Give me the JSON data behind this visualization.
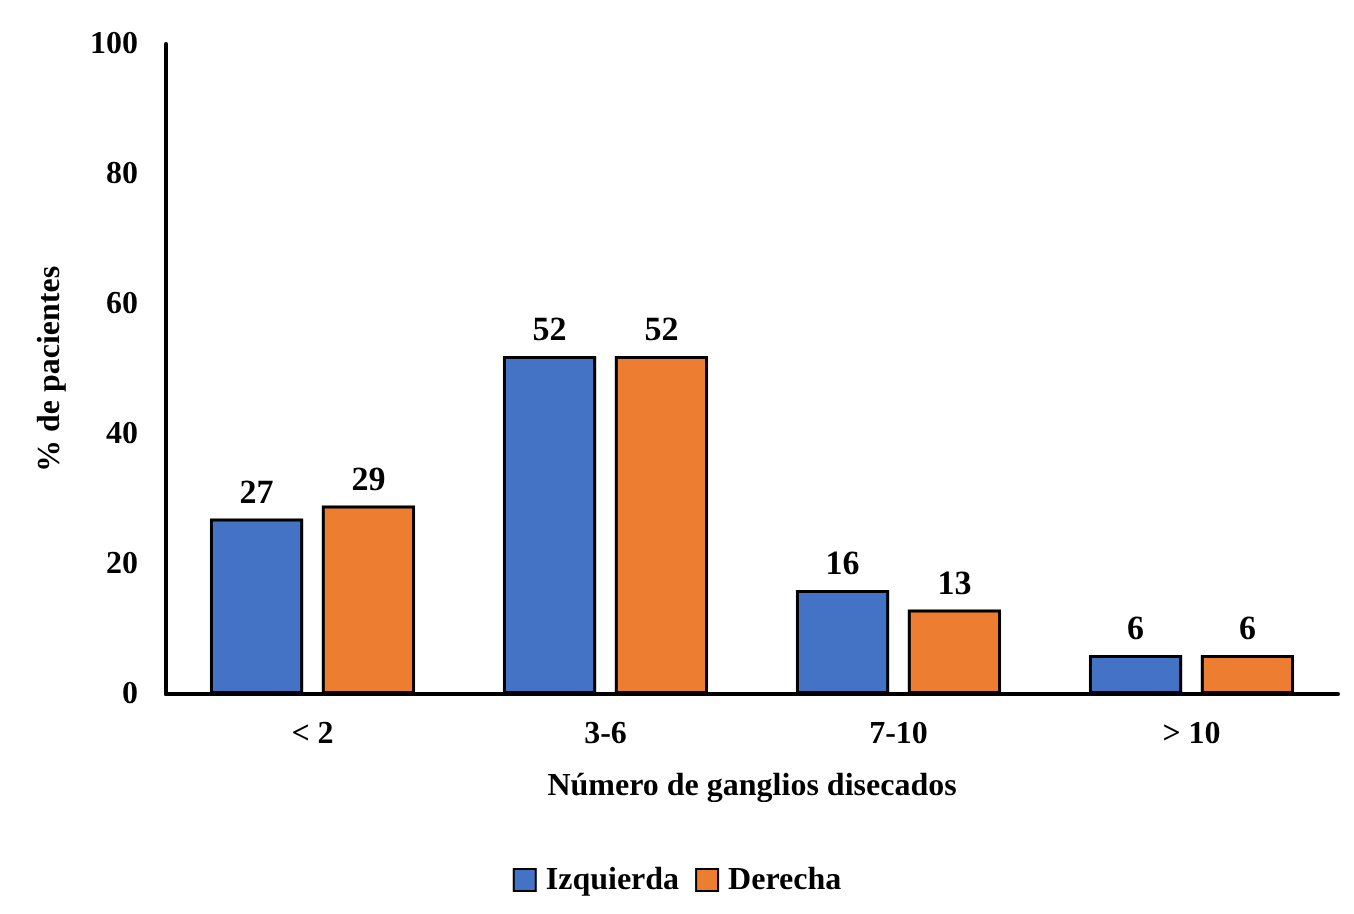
{
  "chart_data": {
    "type": "bar",
    "xlabel": "Número de ganglios disecados",
    "ylabel": "% de pacientes",
    "categories": [
      "< 2",
      "3-6",
      "7-10",
      "> 10"
    ],
    "series": [
      {
        "name": "Izquierda",
        "color": "#4472c4",
        "values": [
          27,
          52,
          16,
          6
        ]
      },
      {
        "name": "Derecha",
        "color": "#ed7d31",
        "values": [
          29,
          52,
          13,
          6
        ]
      }
    ],
    "ylim": [
      0,
      100
    ],
    "yticks": [
      0,
      20,
      40,
      60,
      80,
      100
    ],
    "grid": false,
    "legend": "bottom",
    "data_labels": true
  }
}
